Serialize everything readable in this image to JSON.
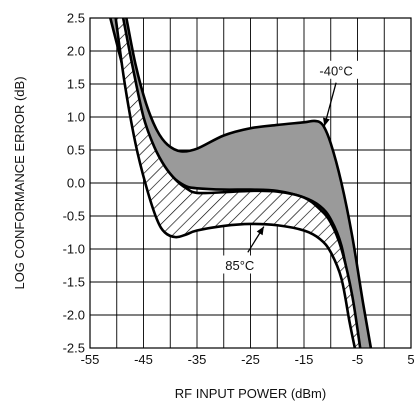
{
  "chart_data": {
    "type": "area",
    "title": "",
    "xlabel": "RF INPUT POWER (dBm)",
    "ylabel": "LOG CONFORMANCE ERROR (dB)",
    "xlim": [
      -55,
      5
    ],
    "ylim": [
      -2.5,
      2.5
    ],
    "x_ticks": [
      -55,
      -45,
      -35,
      -25,
      -15,
      -5,
      5
    ],
    "x_tick_labels": [
      "-55",
      "-45",
      "-35",
      "-25",
      "-15",
      "-5",
      "5"
    ],
    "y_ticks": [
      -2.5,
      -2.0,
      -1.5,
      -1.0,
      -0.5,
      0.0,
      0.5,
      1.0,
      1.5,
      2.0,
      2.5
    ],
    "y_tick_labels": [
      "-2.5",
      "-2.0",
      "-1.5",
      "-1.0",
      "-0.5",
      "0.0",
      "0.5",
      "1.0",
      "1.5",
      "2.0",
      "2.5"
    ],
    "grid": true,
    "series": [
      {
        "name": "-40°C",
        "style": "gray-fill",
        "upper": {
          "x": [
            -48.2,
            -46.5,
            -44.5,
            -42.5,
            -40.5,
            -38,
            -35,
            -30,
            -25,
            -20,
            -15,
            -13,
            -11.5,
            -10,
            -8,
            -6,
            -4,
            -2.5
          ],
          "y": [
            2.5,
            1.8,
            1.2,
            0.8,
            0.58,
            0.48,
            0.52,
            0.72,
            0.83,
            0.88,
            0.92,
            0.94,
            0.88,
            0.6,
            0.0,
            -0.8,
            -1.8,
            -2.5
          ]
        },
        "lower": {
          "x": [
            -51.2,
            -49,
            -47,
            -45,
            -43,
            -41,
            -39,
            -37,
            -35,
            -30,
            -25,
            -20,
            -15,
            -12,
            -10,
            -8,
            -6.5,
            -5
          ],
          "y": [
            2.5,
            1.8,
            1.15,
            0.7,
            0.42,
            0.2,
            0.05,
            -0.05,
            -0.08,
            -0.1,
            -0.1,
            -0.12,
            -0.22,
            -0.35,
            -0.55,
            -0.95,
            -1.6,
            -2.5
          ]
        },
        "label_position": [
          -9,
          1.7
        ]
      },
      {
        "name": "85°C",
        "style": "hatched",
        "upper": {
          "x": [
            -48.8,
            -47,
            -45,
            -43,
            -41,
            -39,
            -37,
            -35,
            -30,
            -25,
            -20,
            -15,
            -12,
            -10,
            -8,
            -6,
            -4.5
          ],
          "y": [
            2.5,
            1.75,
            1.0,
            0.55,
            0.25,
            0.05,
            -0.08,
            -0.15,
            -0.14,
            -0.12,
            -0.13,
            -0.22,
            -0.4,
            -0.6,
            -1.0,
            -1.7,
            -2.5
          ]
        },
        "lower": {
          "x": [
            -50.2,
            -48.5,
            -46.5,
            -44.5,
            -42.5,
            -41,
            -39,
            -37,
            -35,
            -30,
            -25,
            -20,
            -15,
            -12,
            -10,
            -8,
            -6.5,
            -5.5
          ],
          "y": [
            2.5,
            1.5,
            0.6,
            -0.05,
            -0.55,
            -0.75,
            -0.82,
            -0.78,
            -0.72,
            -0.65,
            -0.62,
            -0.64,
            -0.72,
            -0.85,
            -1.05,
            -1.45,
            -2.1,
            -2.5
          ]
        },
        "label_position": [
          -27,
          -1.25
        ]
      }
    ]
  }
}
